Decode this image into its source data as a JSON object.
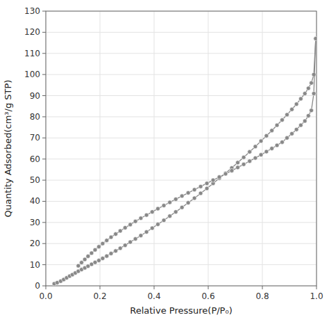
{
  "chart_data": {
    "type": "line",
    "xlabel": "Relative Pressure(P/P₀)",
    "ylabel": "Quantity Adsorbed(cm³/g STP)",
    "xlim": [
      0.0,
      1.0
    ],
    "ylim": [
      0,
      130
    ],
    "xticks": [
      {
        "value": 0.0,
        "label": "0.0"
      },
      0.2,
      0.4,
      0.6,
      0.8,
      {
        "value": 1.0,
        "label": "1.0"
      }
    ],
    "yticks": [
      0,
      10,
      20,
      30,
      40,
      50,
      60,
      70,
      80,
      90,
      100,
      110,
      120,
      130
    ],
    "grid": true,
    "series": [
      {
        "color": "#888888",
        "marker": "circle",
        "line_style": "solid",
        "x": [
          0.031,
          0.042,
          0.055,
          0.066,
          0.077,
          0.088,
          0.098,
          0.109,
          0.12,
          0.132,
          0.144,
          0.156,
          0.169,
          0.182,
          0.196,
          0.21,
          0.225,
          0.241,
          0.258,
          0.275,
          0.293,
          0.312,
          0.331,
          0.351,
          0.372,
          0.393,
          0.414,
          0.436,
          0.458,
          0.48,
          0.503,
          0.526,
          0.549,
          0.572,
          0.595,
          0.618,
          0.641,
          0.664,
          0.687,
          0.709,
          0.731,
          0.753,
          0.774,
          0.795,
          0.815,
          0.835,
          0.854,
          0.873,
          0.891,
          0.909,
          0.926,
          0.942,
          0.957,
          0.97,
          0.981,
          0.99,
          0.997
        ],
        "values": [
          1.0,
          1.5,
          2.2,
          3.0,
          3.8,
          4.6,
          5.3,
          6.1,
          6.9,
          7.7,
          8.5,
          9.3,
          10.2,
          11.1,
          12.0,
          13.0,
          14.1,
          15.3,
          16.5,
          17.8,
          19.2,
          20.7,
          22.2,
          23.8,
          25.5,
          27.3,
          29.1,
          31.0,
          33.0,
          35.0,
          37.1,
          39.3,
          41.5,
          43.8,
          46.1,
          48.5,
          50.9,
          53.3,
          55.8,
          58.3,
          60.8,
          63.4,
          65.9,
          68.5,
          71.0,
          73.5,
          76.0,
          78.5,
          81.0,
          83.5,
          86.0,
          88.5,
          91.0,
          93.5,
          96.0,
          100.0,
          117.0
        ]
      },
      {
        "color": "#888888",
        "marker": "circle",
        "line_style": "solid",
        "x": [
          0.997,
          0.99,
          0.981,
          0.97,
          0.957,
          0.942,
          0.926,
          0.909,
          0.891,
          0.873,
          0.854,
          0.835,
          0.815,
          0.795,
          0.774,
          0.753,
          0.731,
          0.709,
          0.687,
          0.664,
          0.641,
          0.618,
          0.595,
          0.572,
          0.549,
          0.526,
          0.503,
          0.48,
          0.458,
          0.436,
          0.414,
          0.393,
          0.372,
          0.351,
          0.331,
          0.312,
          0.293,
          0.275,
          0.258,
          0.241,
          0.225,
          0.21,
          0.196,
          0.182,
          0.169,
          0.156,
          0.144,
          0.132,
          0.12
        ],
        "values": [
          117.0,
          91.0,
          83.0,
          80.5,
          78.0,
          76.0,
          74.0,
          72.0,
          70.0,
          68.0,
          66.5,
          65.0,
          63.5,
          62.0,
          60.5,
          59.0,
          57.5,
          56.0,
          54.5,
          53.0,
          51.5,
          50.0,
          48.5,
          47.0,
          45.5,
          44.0,
          42.5,
          41.0,
          39.5,
          38.0,
          36.5,
          35.0,
          33.5,
          32.0,
          30.5,
          29.0,
          27.5,
          26.0,
          24.5,
          23.0,
          21.5,
          20.0,
          18.5,
          17.0,
          15.5,
          14.0,
          12.5,
          11.0,
          9.5
        ]
      }
    ]
  }
}
